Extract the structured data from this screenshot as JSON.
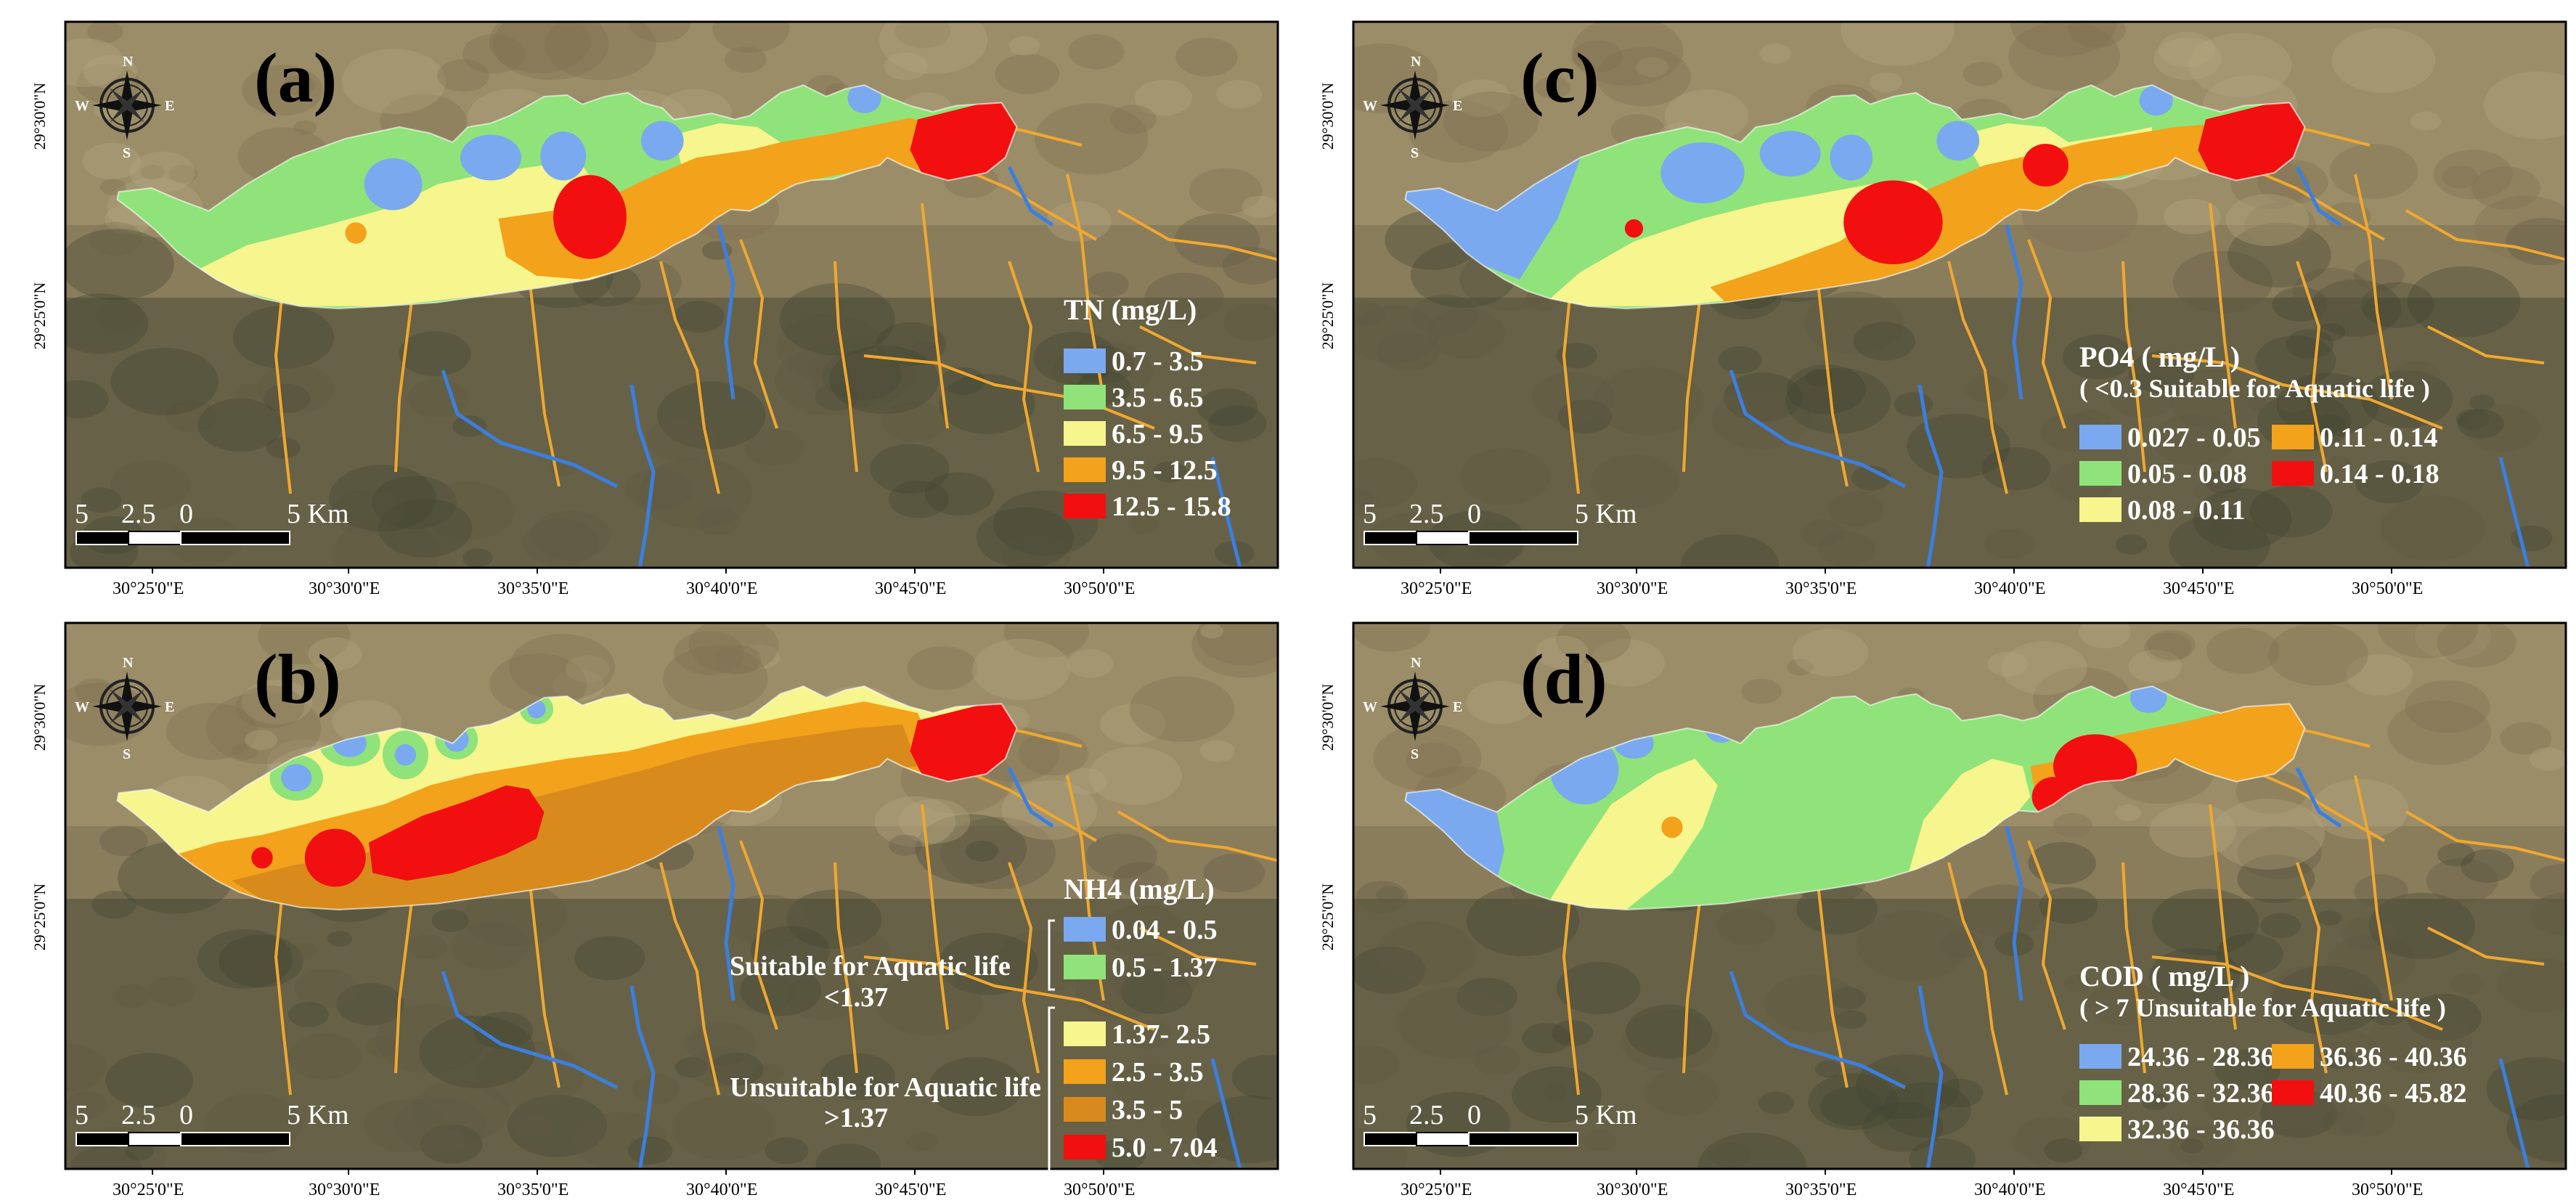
{
  "colors": {
    "blue": "#7aa9ef",
    "green": "#8fe37a",
    "yellow": "#f6f58e",
    "orange": "#f3a21c",
    "dark_orange": "#d88b1c",
    "red": "#f20f0f",
    "canal": "#f0a830",
    "river": "#3b7fe0",
    "land": "#8a7d5c"
  },
  "compass": {
    "n": "N",
    "s": "S",
    "e": "E",
    "w": "W",
    "icon": "compass-rose-icon"
  },
  "scale_bar": {
    "labels": [
      "5",
      "2.5",
      "0",
      "5 Km"
    ]
  },
  "x_ticks": [
    "30°25'0\"E",
    "30°30'0\"E",
    "30°35'0\"E",
    "30°40'0\"E",
    "30°45'0\"E",
    "30°50'0\"E"
  ],
  "y_ticks": [
    "29°30'0\"N",
    "29°25'0\"N"
  ],
  "panels": [
    {
      "id": "a",
      "label": "(a)",
      "legend_title": "TN (mg/L)",
      "legend_note": "",
      "classes": [
        {
          "label": "0.7 - 3.5",
          "color": "blue"
        },
        {
          "label": "3.5 - 6.5",
          "color": "green"
        },
        {
          "label": "6.5 - 9.5",
          "color": "yellow"
        },
        {
          "label": "9.5 - 12.5",
          "color": "orange"
        },
        {
          "label": "12.5 - 15.8",
          "color": "red"
        }
      ]
    },
    {
      "id": "c",
      "label": "(c)",
      "legend_title": "PO4 ( mg/L )",
      "legend_note": "( <0.3 Suitable for Aquatic life )",
      "classes": [
        {
          "label": "0.027 - 0.05",
          "color": "blue"
        },
        {
          "label": "0.11 - 0.14",
          "color": "orange"
        },
        {
          "label": "0.05 - 0.08",
          "color": "green"
        },
        {
          "label": "0.14 - 0.18",
          "color": "red"
        },
        {
          "label": "0.08 - 0.11",
          "color": "yellow"
        }
      ]
    },
    {
      "id": "b",
      "label": "(b)",
      "legend_title": "NH4 (mg/L)",
      "legend_note": "",
      "suitable_label": "Suitable for Aquatic life",
      "suitable_threshold": "<1.37",
      "unsuitable_label": "Unsuitable for Aquatic life",
      "unsuitable_threshold": ">1.37",
      "classes": [
        {
          "label": "0.04 - 0.5",
          "color": "blue"
        },
        {
          "label": "0.5 - 1.37",
          "color": "green"
        },
        {
          "label": "1.37- 2.5",
          "color": "yellow"
        },
        {
          "label": "2.5 - 3.5",
          "color": "orange"
        },
        {
          "label": "3.5 - 5",
          "color": "dark_orange"
        },
        {
          "label": "5.0 - 7.04",
          "color": "red"
        }
      ]
    },
    {
      "id": "d",
      "label": "(d)",
      "legend_title": "COD ( mg/L )",
      "legend_note": "( > 7 Unsuitable for Aquatic life )",
      "classes": [
        {
          "label": "24.36 - 28.36",
          "color": "blue"
        },
        {
          "label": "36.36 - 40.36",
          "color": "orange"
        },
        {
          "label": "28.36 - 32.36",
          "color": "green"
        },
        {
          "label": "40.36 - 45.82",
          "color": "red"
        },
        {
          "label": "32.36 - 36.36",
          "color": "yellow"
        }
      ]
    }
  ]
}
